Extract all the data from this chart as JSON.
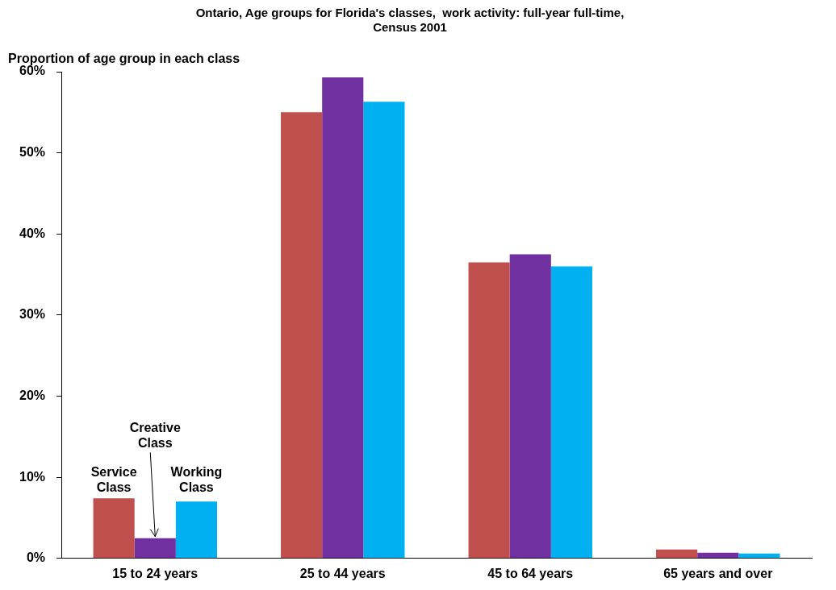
{
  "chart_data": {
    "type": "bar",
    "title": "Ontario, Age groups for Florida's classes,  work activity: full-year full-time, Census 2001",
    "ylabel": "Proportion of age group in each class",
    "categories": [
      "15 to 24 years",
      "25 to 44 years",
      "45 to 64 years",
      "65 years and over"
    ],
    "series": [
      {
        "name": "Service Class",
        "color": "#c0504d",
        "values": [
          7.4,
          55.0,
          36.5,
          1.1
        ]
      },
      {
        "name": "Creative Class",
        "color": "#7030a0",
        "values": [
          2.5,
          59.3,
          37.5,
          0.7
        ]
      },
      {
        "name": "Working Class",
        "color": "#00b0f0",
        "values": [
          7.0,
          56.3,
          36.0,
          0.6
        ]
      }
    ],
    "ylim": [
      0,
      60
    ],
    "yticks": [
      {
        "value": 0,
        "label": "0%"
      },
      {
        "value": 10,
        "label": "10%"
      },
      {
        "value": 20,
        "label": "20%"
      },
      {
        "value": 30,
        "label": "30%"
      },
      {
        "value": 40,
        "label": "40%"
      },
      {
        "value": 50,
        "label": "50%"
      },
      {
        "value": 60,
        "label": "60%"
      }
    ],
    "grid": false,
    "legend": false
  }
}
